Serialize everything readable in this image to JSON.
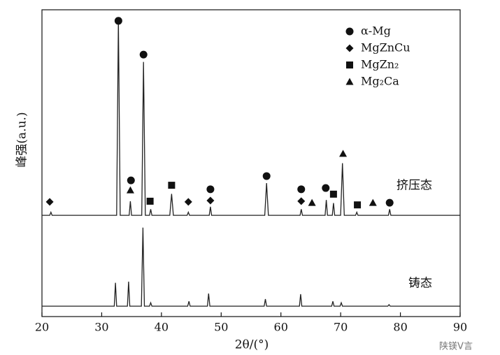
{
  "chart_data": {
    "type": "line",
    "x_label": "2θ/(°)",
    "y_label": "峰强(a.u.)",
    "xlim": [
      20,
      90
    ],
    "xticks": [
      20,
      30,
      40,
      50,
      60,
      70,
      80,
      90
    ],
    "ylim": [
      0,
      100
    ],
    "series": [
      {
        "name": "挤压态",
        "color": "#222222",
        "x": [
          20,
          21.3,
          21.5,
          21.7,
          32.5,
          32.8,
          33.1,
          34.6,
          34.8,
          35.0,
          36.7,
          37.0,
          37.3,
          38.0,
          38.2,
          38.4,
          41.4,
          41.7,
          42.0,
          44.3,
          44.5,
          44.7,
          48.0,
          48.2,
          48.4,
          57.3,
          57.6,
          57.9,
          63.2,
          63.4,
          63.6,
          67.4,
          67.6,
          67.8,
          68.6,
          68.8,
          69.0,
          70.0,
          70.3,
          70.6,
          72.5,
          72.7,
          72.9,
          78.0,
          78.2,
          78.4,
          90
        ],
        "values": [
          33,
          33,
          34,
          33,
          33,
          96.8,
          33,
          33,
          37.6,
          33,
          33,
          83,
          33,
          33,
          35,
          33,
          33,
          40,
          33,
          33,
          34,
          33,
          33,
          35.8,
          33,
          33,
          43.5,
          33,
          33,
          35,
          33,
          33,
          38,
          33,
          33,
          37,
          33,
          33,
          50,
          33,
          33,
          34,
          33,
          33,
          35,
          33,
          33
        ]
      },
      {
        "name": "铸态",
        "color": "#222222",
        "x": [
          20,
          32.1,
          32.3,
          32.5,
          34.3,
          34.5,
          34.7,
          36.65,
          36.9,
          37.15,
          38.0,
          38.2,
          38.4,
          44.4,
          44.6,
          44.8,
          47.7,
          47.9,
          48.1,
          57.2,
          57.4,
          57.6,
          63.1,
          63.3,
          63.5,
          68.5,
          68.7,
          68.9,
          69.9,
          70.1,
          70.3,
          77.9,
          78.1,
          78.3,
          90
        ],
        "values": [
          3.4,
          3.4,
          11,
          3.4,
          3.4,
          11.4,
          3.4,
          3.4,
          29,
          3.4,
          3.4,
          4.5,
          3.4,
          3.4,
          5,
          3.4,
          3.4,
          7.5,
          3.4,
          3.4,
          5.7,
          3.4,
          3.4,
          7.3,
          3.4,
          3.4,
          5,
          3.4,
          3.4,
          4.5,
          3.4,
          3.4,
          3.9,
          3.4,
          3.4
        ]
      }
    ],
    "markers": [
      {
        "name": "α-Mg",
        "shape": "circle",
        "x": [
          32.8,
          37.0,
          34.9,
          48.2,
          57.6,
          63.4,
          67.5,
          78.2
        ],
        "y": [
          96.4,
          85.4,
          44.4,
          41.5,
          45.8,
          41.5,
          41.9,
          37.1
        ]
      },
      {
        "name": "MgZnCu",
        "shape": "diamond",
        "x": [
          21.3,
          44.5,
          48.2,
          63.4
        ],
        "y": [
          37.4,
          37.4,
          37.8,
          37.6
        ]
      },
      {
        "name": "MgZn₂",
        "shape": "square",
        "x": [
          38.1,
          41.7,
          68.8,
          72.8
        ],
        "y": [
          37.6,
          42.8,
          39.9,
          36.4
        ]
      },
      {
        "name": "Mg₂Ca",
        "shape": "triangle",
        "x": [
          34.8,
          65.2,
          70.4,
          75.4
        ],
        "y": [
          41.2,
          37.1,
          53.1,
          37.1
        ]
      }
    ],
    "watermark": "陕镁V言"
  }
}
